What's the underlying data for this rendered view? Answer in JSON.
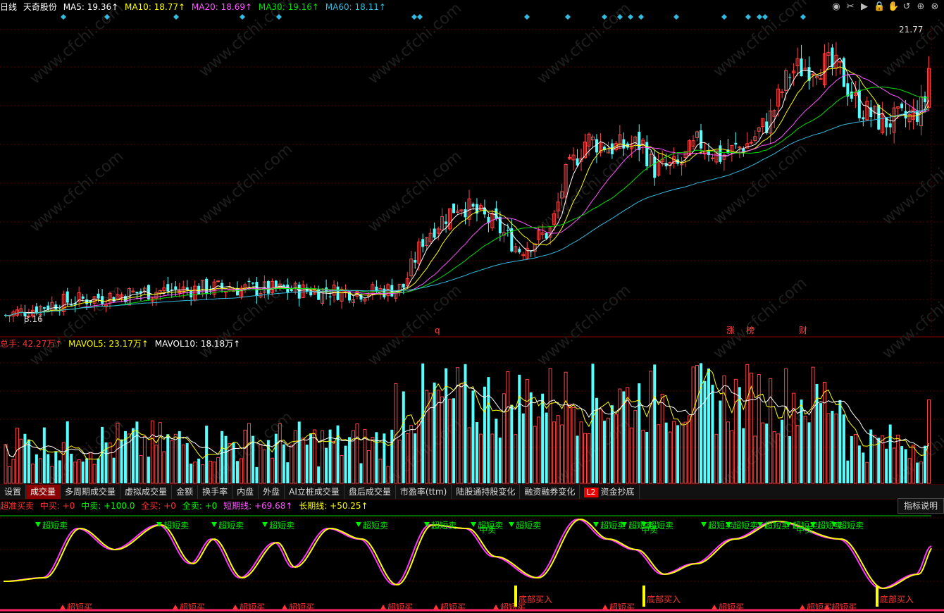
{
  "header": {
    "period": "日线",
    "stock_name": "天奇股份",
    "ma": [
      {
        "label": "MA5: 19.36↑",
        "color": "#ffffff"
      },
      {
        "label": "MA10: 18.77↑",
        "color": "#ffff00"
      },
      {
        "label": "MA20: 18.69↑",
        "color": "#ff55ff"
      },
      {
        "label": "MA30: 19.16↑",
        "color": "#00e000"
      },
      {
        "label": "MA60: 18.11↑",
        "color": "#33bbdd"
      }
    ],
    "toolbar_icons": [
      "eye-icon",
      "scissors-icon",
      "play-icon",
      "lock-icon",
      "hand-icon",
      "undo-icon",
      "plus-icon",
      "close-icon"
    ],
    "toolbar_glyphs": [
      "◉",
      "✂",
      "▶",
      "🔒",
      "✋",
      "↺",
      "⊕",
      "⊗"
    ]
  },
  "main_chart": {
    "high_label": "21.77",
    "low_label": "8.16",
    "markers": [
      "q",
      "涨",
      "榜",
      "财"
    ]
  },
  "volume": {
    "items": [
      {
        "label": "总手: 42.27万↑",
        "color": "#ff3333"
      },
      {
        "label": "MAVOL5: 23.17万↑",
        "color": "#ffff00"
      },
      {
        "label": "MAVOL10: 18.18万↑",
        "color": "#ffffff"
      }
    ]
  },
  "tabs": [
    "设置",
    "成交量",
    "多周期成交量",
    "虚拟成交量",
    "金额",
    "换手率",
    "内盘",
    "外盘",
    "AI立桩成交量",
    "盘后成交量",
    "市盈率(ttm)",
    "陆股通持股变化",
    "融资融券变化",
    "资金抄底"
  ],
  "tab_l2_badge": "L2",
  "indicator": {
    "items": [
      {
        "label": "超准买卖",
        "color": "#ff3333"
      },
      {
        "label": "中买: +0",
        "color": "#ff3333"
      },
      {
        "label": "中卖: +100.0",
        "color": "#00ff00"
      },
      {
        "label": "全买: +0",
        "color": "#ff3333"
      },
      {
        "label": "全卖: +0",
        "color": "#00ff00"
      },
      {
        "label": "短期线: +69.68↑",
        "color": "#ff55ff"
      },
      {
        "label": "长期线: +50.25↑",
        "color": "#ffff00"
      }
    ],
    "explain_button": "指标说明",
    "sell_label": "超短卖",
    "buy_label": "超短买",
    "mid_sell_label": "中卖",
    "bottom_buy_label": "底部买入"
  },
  "chart_data": [
    {
      "type": "candlestick",
      "title": "",
      "ylim": [
        8.16,
        21.77
      ],
      "ma_periods": [
        5,
        10,
        20,
        30,
        60
      ],
      "notes": "daily candles, close rises from ~8.2 to ~21.8"
    },
    {
      "type": "bar",
      "title": "",
      "series": [
        {
          "name": "总手"
        },
        {
          "name": "MAVOL5"
        },
        {
          "name": "MAVOL10"
        }
      ]
    },
    {
      "type": "line",
      "title": "",
      "series": [
        {
          "name": "短期线"
        },
        {
          "name": "长期线"
        }
      ]
    }
  ]
}
